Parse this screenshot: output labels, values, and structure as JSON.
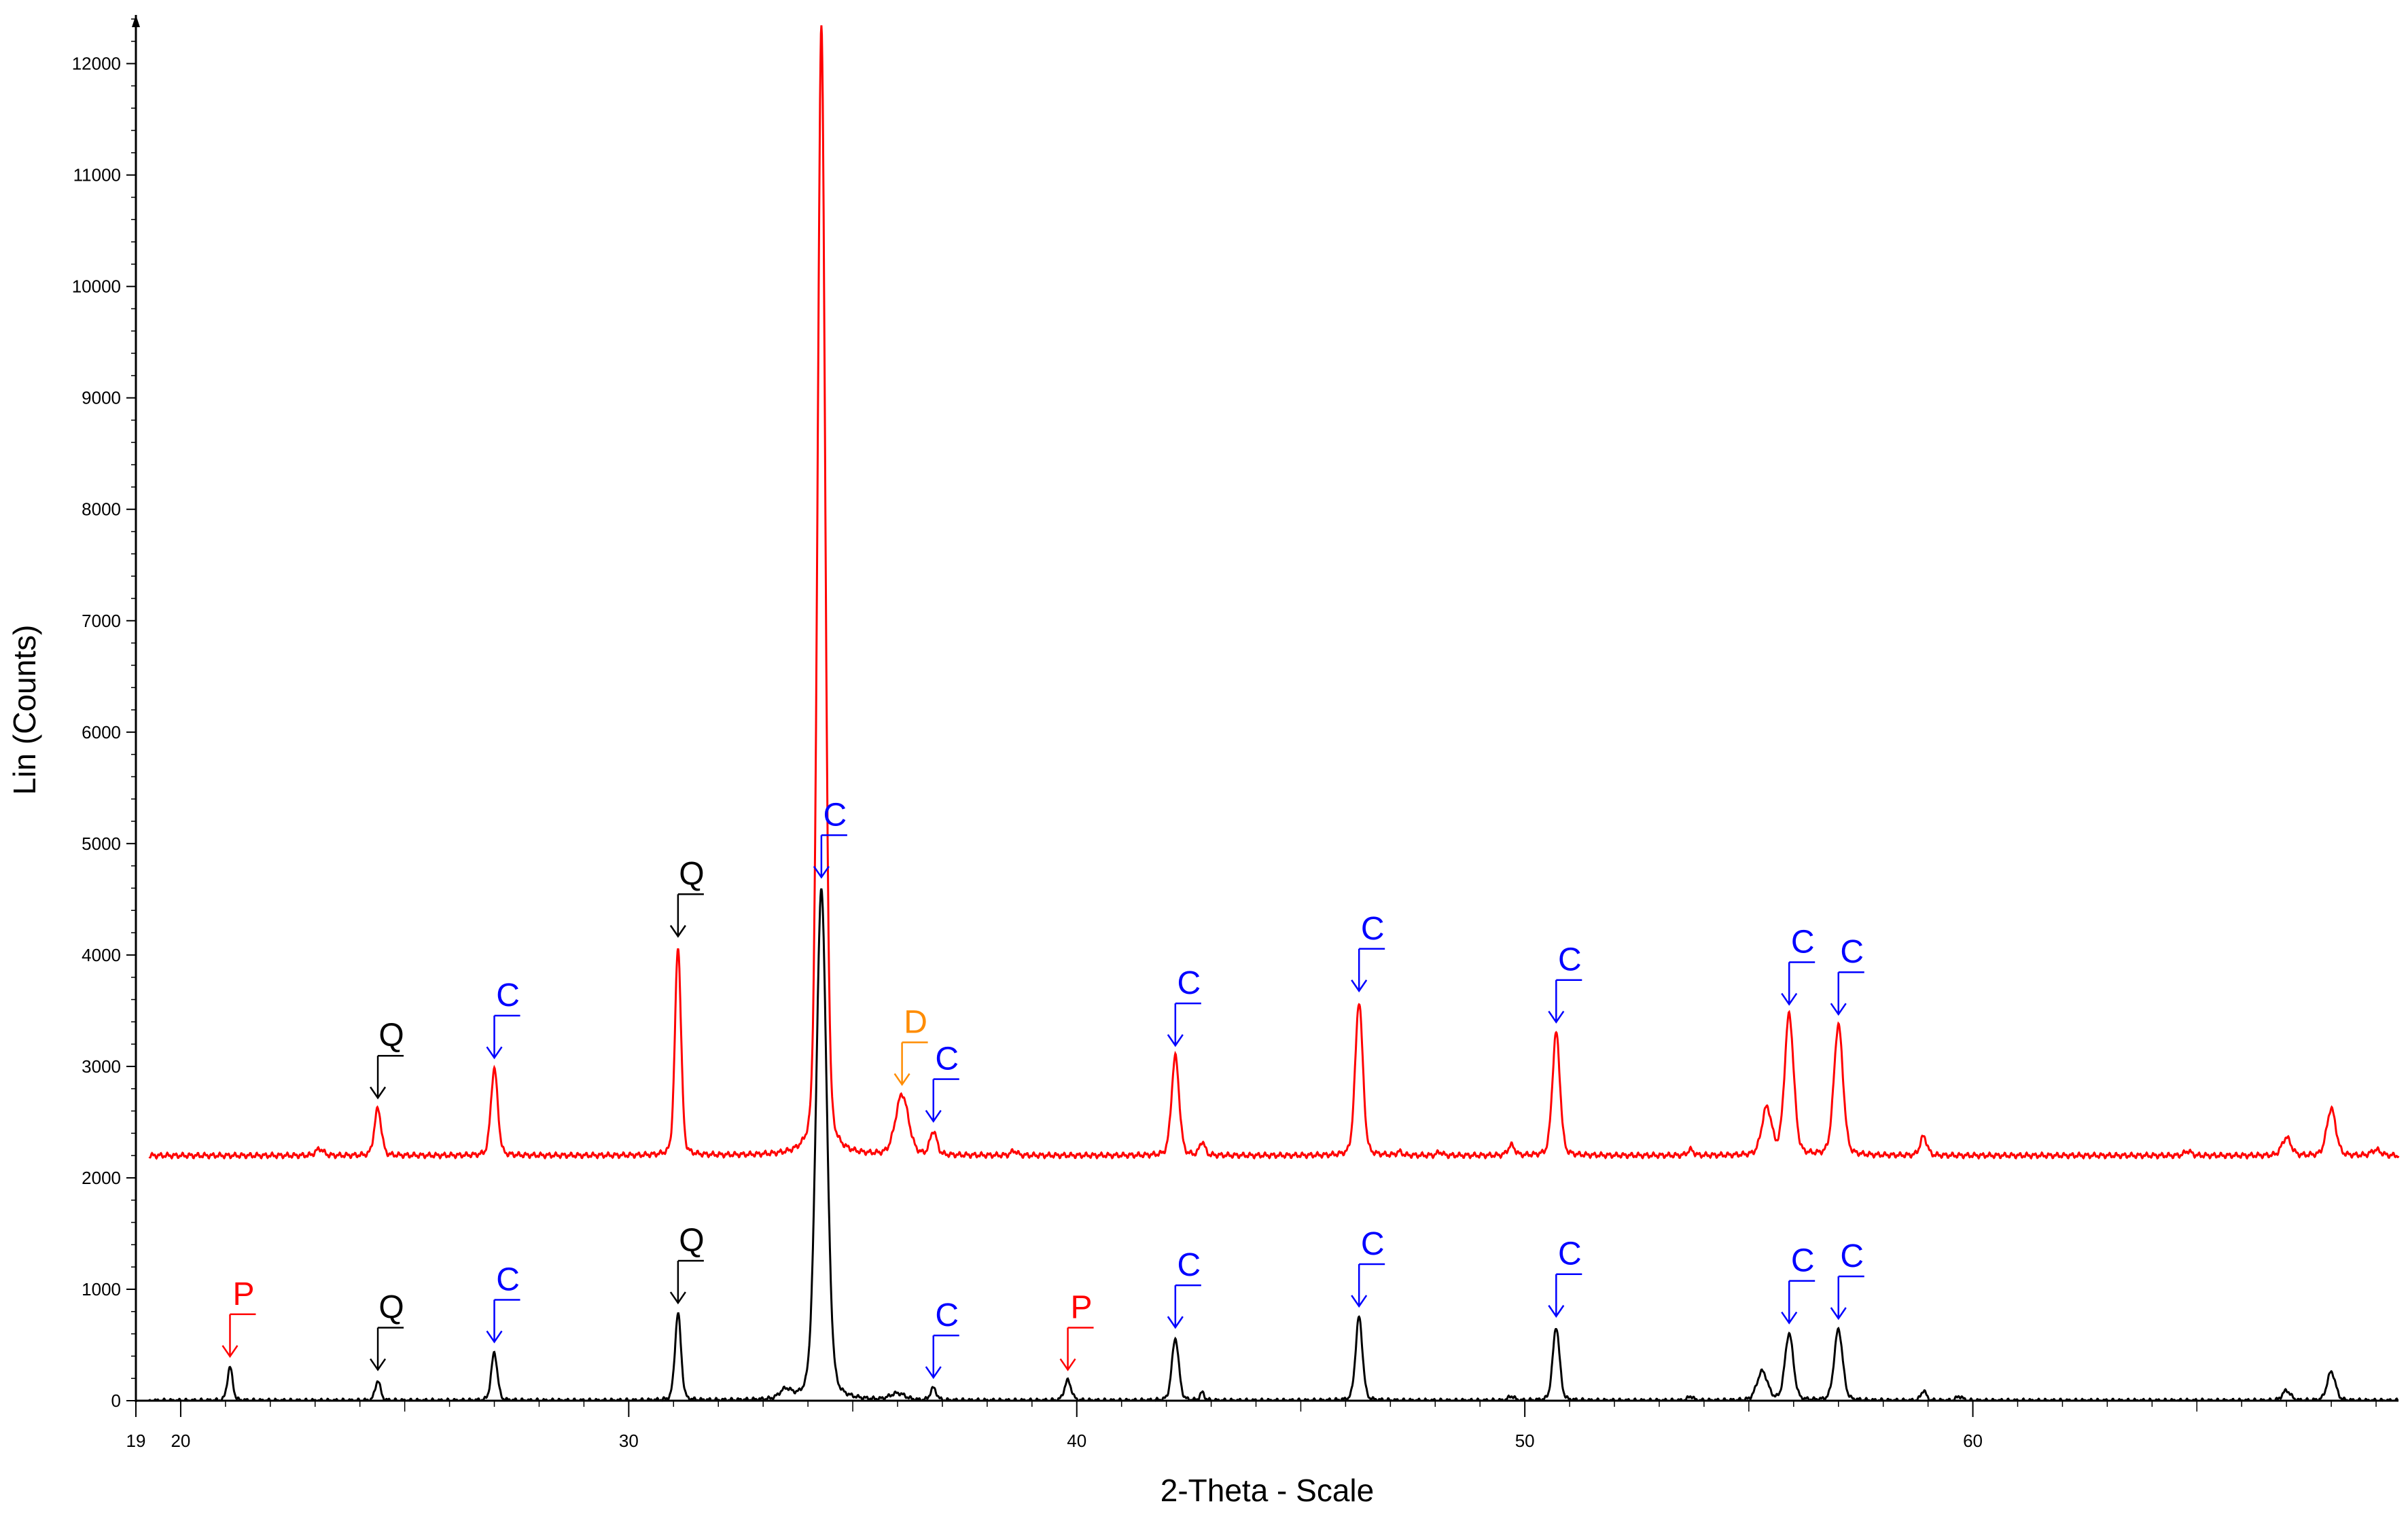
{
  "chart_data": {
    "type": "line",
    "xlabel": "2-Theta - Scale",
    "ylabel": "Lin (Counts)",
    "xlim": [
      19,
      69.5
    ],
    "ylim": [
      0,
      12400
    ],
    "x_ticks": [
      19,
      20,
      30,
      40,
      50,
      60
    ],
    "x_tick_labels": [
      "19",
      "20",
      "30",
      "40",
      "50",
      "60"
    ],
    "y_ticks": [
      0,
      1000,
      2000,
      3000,
      4000,
      5000,
      6000,
      7000,
      8000,
      9000,
      10000,
      11000,
      12000
    ],
    "y_tick_labels": [
      "0",
      "1000",
      "2000",
      "3000",
      "4000",
      "5000",
      "6000",
      "7000",
      "8000",
      "9000",
      "10000",
      "11000",
      "12000"
    ],
    "grid": false,
    "legend": "none",
    "series": [
      {
        "color": "#ff0000",
        "baseline": 2200,
        "noise": 25,
        "peaks": [
          [
            23.1,
            2260,
            0.1
          ],
          [
            24.4,
            2620,
            0.09
          ],
          [
            27.0,
            2980,
            0.09
          ],
          [
            31.1,
            4070,
            0.08
          ],
          [
            34.3,
            12350,
            0.1
          ],
          [
            36.1,
            2740,
            0.17
          ],
          [
            36.8,
            2410,
            0.09
          ],
          [
            38.6,
            2240,
            0.08
          ],
          [
            42.2,
            3090,
            0.1
          ],
          [
            42.8,
            2320,
            0.07
          ],
          [
            46.3,
            3580,
            0.1
          ],
          [
            47.2,
            2230,
            0.07
          ],
          [
            48.1,
            2230,
            0.07
          ],
          [
            49.7,
            2290,
            0.09
          ],
          [
            50.7,
            3300,
            0.1
          ],
          [
            53.7,
            2250,
            0.08
          ],
          [
            55.4,
            2620,
            0.13
          ],
          [
            55.9,
            3460,
            0.12
          ],
          [
            57.0,
            3370,
            0.12
          ],
          [
            58.9,
            2370,
            0.09
          ],
          [
            64.8,
            2240,
            0.09
          ],
          [
            67.0,
            2360,
            0.12
          ],
          [
            68.0,
            2620,
            0.12
          ],
          [
            69.0,
            2250,
            0.12
          ]
        ],
        "annotations": [
          {
            "label": "Q",
            "x": 24.4,
            "y": 2620,
            "color": "#000000"
          },
          {
            "label": "C",
            "x": 27.0,
            "y": 2980,
            "color": "#0000ff"
          },
          {
            "label": "Q",
            "x": 31.1,
            "y": 4070,
            "color": "#000000"
          },
          {
            "label": "C",
            "x": 34.3,
            "y": 4600,
            "color": "#0000ff"
          },
          {
            "label": "D",
            "x": 36.1,
            "y": 2740,
            "color": "#ff8c00"
          },
          {
            "label": "C",
            "x": 36.8,
            "y": 2410,
            "color": "#0000ff"
          },
          {
            "label": "C",
            "x": 42.2,
            "y": 3090,
            "color": "#0000ff"
          },
          {
            "label": "C",
            "x": 46.3,
            "y": 3580,
            "color": "#0000ff"
          },
          {
            "label": "C",
            "x": 50.7,
            "y": 3300,
            "color": "#0000ff"
          },
          {
            "label": "C",
            "x": 55.9,
            "y": 3460,
            "color": "#0000ff"
          },
          {
            "label": "C",
            "x": 57.0,
            "y": 3370,
            "color": "#0000ff"
          }
        ]
      },
      {
        "color": "#000000",
        "baseline": 0,
        "noise": 18,
        "peaks": [
          [
            21.1,
            300,
            0.07
          ],
          [
            24.4,
            180,
            0.07
          ],
          [
            27.0,
            430,
            0.08
          ],
          [
            31.1,
            780,
            0.08
          ],
          [
            33.5,
            80,
            0.15
          ],
          [
            34.3,
            4580,
            0.14
          ],
          [
            36.0,
            60,
            0.2
          ],
          [
            36.8,
            110,
            0.08
          ],
          [
            39.8,
            180,
            0.09
          ],
          [
            42.2,
            560,
            0.09
          ],
          [
            42.8,
            70,
            0.06
          ],
          [
            46.3,
            750,
            0.09
          ],
          [
            49.7,
            40,
            0.08
          ],
          [
            50.7,
            660,
            0.09
          ],
          [
            53.7,
            40,
            0.07
          ],
          [
            55.3,
            260,
            0.14
          ],
          [
            55.9,
            600,
            0.11
          ],
          [
            57.0,
            640,
            0.11
          ],
          [
            58.9,
            90,
            0.07
          ],
          [
            59.7,
            40,
            0.08
          ],
          [
            67.0,
            90,
            0.11
          ],
          [
            68.0,
            260,
            0.11
          ]
        ],
        "annotations": [
          {
            "label": "P",
            "x": 21.1,
            "y": 300,
            "color": "#ff0000"
          },
          {
            "label": "Q",
            "x": 24.4,
            "y": 180,
            "color": "#000000"
          },
          {
            "label": "C",
            "x": 27.0,
            "y": 430,
            "color": "#0000ff"
          },
          {
            "label": "Q",
            "x": 31.1,
            "y": 780,
            "color": "#000000"
          },
          {
            "label": "C",
            "x": 36.8,
            "y": 110,
            "color": "#0000ff"
          },
          {
            "label": "P",
            "x": 39.8,
            "y": 180,
            "color": "#ff0000"
          },
          {
            "label": "C",
            "x": 42.2,
            "y": 560,
            "color": "#0000ff"
          },
          {
            "label": "C",
            "x": 46.3,
            "y": 750,
            "color": "#0000ff"
          },
          {
            "label": "C",
            "x": 50.7,
            "y": 660,
            "color": "#0000ff"
          },
          {
            "label": "C",
            "x": 55.9,
            "y": 600,
            "color": "#0000ff"
          },
          {
            "label": "C",
            "x": 57.0,
            "y": 640,
            "color": "#0000ff"
          }
        ]
      }
    ]
  }
}
